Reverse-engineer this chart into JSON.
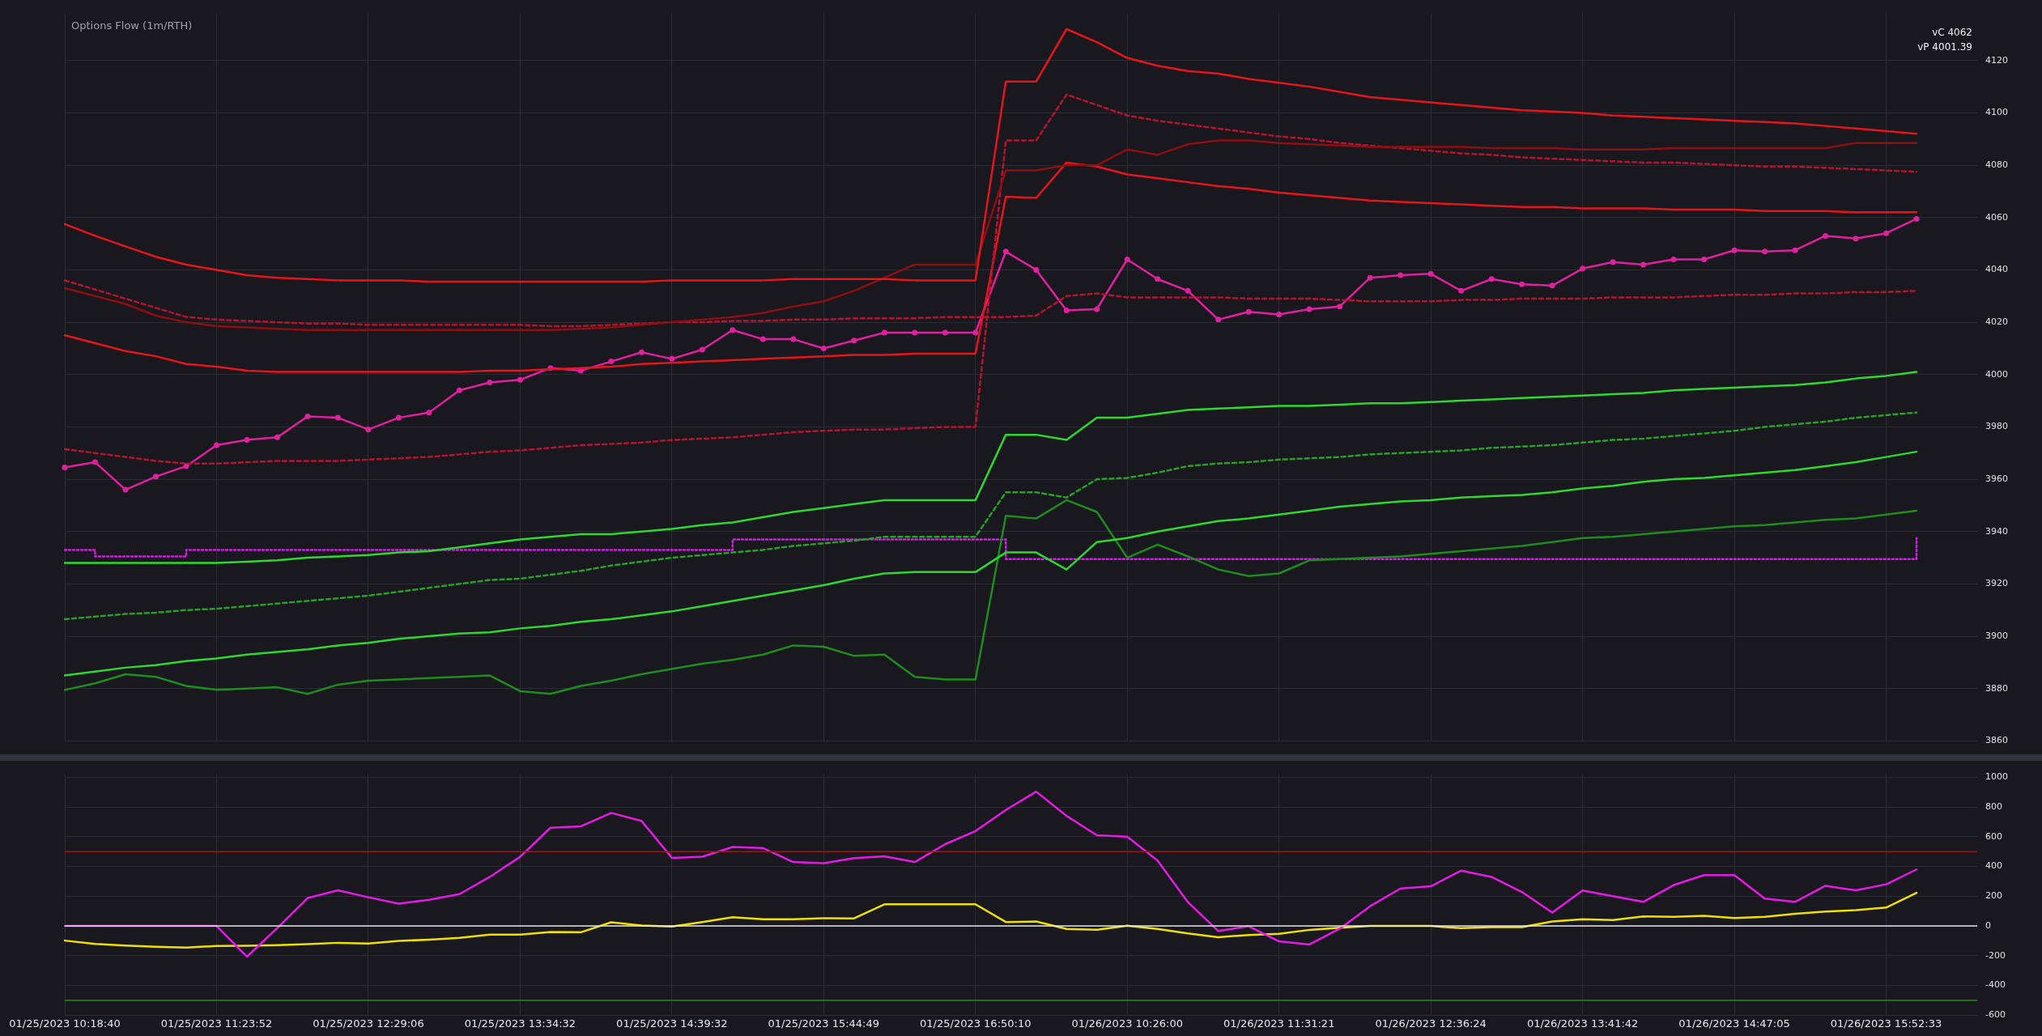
{
  "chart_data": [
    {
      "type": "line",
      "title": "Options Flow (1m/RTH)",
      "categories": [
        null,
        null,
        null,
        null,
        null,
        null,
        null,
        null,
        null,
        null,
        null,
        null,
        null,
        null,
        null,
        null,
        null,
        null,
        null,
        null,
        null,
        null,
        null,
        null,
        null,
        null,
        null,
        null,
        null,
        null,
        null,
        null,
        null,
        null,
        null,
        null,
        null,
        null,
        null,
        null,
        null,
        null,
        null,
        null,
        null,
        null,
        null,
        null,
        null,
        null,
        null,
        null,
        null,
        null,
        null,
        null,
        null,
        null,
        null,
        null,
        null,
        null,
        null,
        null
      ],
      "ylim": [
        3860,
        4138
      ],
      "yticks": [
        3860,
        3880,
        3900,
        3920,
        3940,
        3960,
        3980,
        4000,
        4020,
        4040,
        4060,
        4080,
        4100,
        4120
      ],
      "grid": true,
      "legend": false,
      "tick_labels": "y",
      "marker": "none",
      "line_style": "solid",
      "annotations": [
        "vC 4062",
        "vP 4001.39"
      ],
      "series": [
        {
          "color": "#e8141c",
          "values": [
            4057.5,
            4053,
            4049,
            4045,
            4042,
            4040,
            4038,
            4037,
            4036.5,
            4036,
            4036,
            4036,
            4035.5,
            4035.5,
            4035.5,
            4035.5,
            4035.5,
            4035.5,
            4035.5,
            4035.5,
            4036,
            4036,
            4036,
            4036,
            4036.5,
            4036.5,
            4036.5,
            4036.5,
            4036,
            4036,
            4036,
            4112,
            4112,
            4132,
            4127,
            4121,
            4118,
            4116,
            4115,
            4113,
            4111.5,
            4110,
            4108,
            4106,
            4105,
            4104,
            4103,
            4102,
            4101,
            4100.5,
            4100,
            4099,
            4098.5,
            4098,
            4097.5,
            4097,
            4096.5,
            4096,
            4095,
            4094,
            4093,
            4092,
            null,
            null
          ]
        },
        {
          "color": "#8e0f12",
          "values": [
            4033,
            4030,
            4027,
            4022.5,
            4020,
            4018.5,
            4018,
            4017.5,
            4017,
            4017,
            4017,
            4017,
            4017,
            4017,
            4017,
            4017,
            4017,
            4017.5,
            4018,
            4019,
            4020,
            4021,
            4022,
            4023.5,
            4026,
            4028,
            4032,
            4037,
            4042,
            4042,
            4042,
            4078,
            4078,
            4080,
            4080,
            4086,
            4084,
            4088,
            4089.5,
            4089.5,
            4088.5,
            4088,
            4087.5,
            4087,
            4087,
            4087,
            4087,
            4086.5,
            4086.5,
            4086.5,
            4086,
            4086,
            4086,
            4086.5,
            4086.5,
            4086.5,
            4086.5,
            4086.5,
            4086.5,
            4088.5,
            4088.5,
            4088.5,
            null,
            null
          ]
        },
        {
          "color": "#b4142e",
          "line_style": "dashed",
          "values": [
            4036,
            4032.5,
            4029,
            4025.5,
            4022,
            4021,
            4020.5,
            4020,
            4019.5,
            4019.5,
            4019,
            4019,
            4019,
            4019,
            4019,
            4019,
            4018.5,
            4018.5,
            4019,
            4019.5,
            4020,
            4020,
            4020.5,
            4020.5,
            4021,
            4021,
            4021.5,
            4021.5,
            4021.5,
            4022,
            4022,
            4022,
            4022.5,
            4030,
            4031,
            4029.5,
            4029.5,
            4029.5,
            4029.5,
            4029,
            4029,
            4029,
            4028.5,
            4028,
            4028,
            4028,
            4028.5,
            4028.5,
            4029,
            4029,
            4029,
            4029.5,
            4029.5,
            4029.5,
            4030,
            4030.5,
            4030.5,
            4031,
            4031,
            4031.5,
            4031.5,
            4032,
            null,
            null
          ]
        },
        {
          "color": "#b4142e",
          "line_style": "dashed",
          "values": [
            3971.5,
            3970,
            3968.5,
            3967,
            3966,
            3966,
            3966.5,
            3967,
            3967,
            3967,
            3967.5,
            3968,
            3968.5,
            3969.5,
            3970.5,
            3971,
            3972,
            3973,
            3973.5,
            3974,
            3975,
            3975.5,
            3976,
            3977,
            3978,
            3978.5,
            3979,
            3979,
            3979.5,
            3980,
            3980,
            4089.5,
            4089.5,
            4107,
            4103,
            4099,
            4097,
            4095.5,
            4094,
            4092.5,
            4091,
            4090,
            4088.5,
            4087.5,
            4086.5,
            4085.5,
            4084.5,
            4084,
            4083,
            4082.5,
            4082,
            4081.5,
            4081,
            4081,
            4080.5,
            4080,
            4079.5,
            4079.5,
            4079,
            4078.5,
            4078,
            4077.5,
            null,
            null
          ]
        },
        {
          "color": "#e8141c",
          "values": [
            4015,
            4012,
            4009,
            4007,
            4004,
            4003,
            4001.5,
            4001,
            4001,
            4001,
            4001,
            4001,
            4001,
            4001,
            4001.5,
            4001.5,
            4002,
            4002.5,
            4003,
            4004,
            4004.5,
            4005,
            4005.5,
            4006,
            4006.5,
            4007,
            4007.5,
            4007.5,
            4008,
            4008,
            4008,
            4068,
            4067.5,
            4081,
            4079.5,
            4076.5,
            4075,
            4073.5,
            4072,
            4071,
            4069.5,
            4068.5,
            4067.5,
            4066.5,
            4066,
            4065.5,
            4065,
            4064.5,
            4064,
            4064,
            4063.5,
            4063.5,
            4063.5,
            4063,
            4063,
            4063,
            4062.5,
            4062.5,
            4062.5,
            4062,
            4062,
            4062,
            null,
            null
          ]
        },
        {
          "color": "#2ed82e",
          "values": [
            3928,
            3928,
            3928,
            3928,
            3928,
            3928,
            3928.5,
            3929,
            3930,
            3930.5,
            3931,
            3932,
            3932.5,
            3934,
            3935.5,
            3937,
            3938,
            3939,
            3939,
            3940,
            3941,
            3942.5,
            3943.5,
            3945.5,
            3947.5,
            3949,
            3950.5,
            3952,
            3952,
            3952,
            3952,
            3977,
            3977,
            3975,
            3983.5,
            3983.5,
            3985,
            3986.5,
            3987,
            3987.5,
            3988,
            3988,
            3988.5,
            3989,
            3989,
            3989.5,
            3990,
            3990.5,
            3991,
            3991.5,
            3992,
            3992.5,
            3993,
            3994,
            3994.5,
            3995,
            3995.5,
            3996,
            3997,
            3998.5,
            3999.5,
            4001,
            null,
            null
          ]
        },
        {
          "color": "#28a028",
          "line_style": "dashed",
          "values": [
            3906.5,
            3907.5,
            3908.5,
            3909,
            3910,
            3910.5,
            3911.5,
            3912.5,
            3913.5,
            3914.5,
            3915.5,
            3917,
            3918.5,
            3920,
            3921.5,
            3922,
            3923.5,
            3925,
            3927,
            3928.5,
            3930,
            3931,
            3932,
            3933,
            3934.5,
            3935.5,
            3936.5,
            3938,
            3938,
            3938,
            3938,
            3955,
            3955,
            3953,
            3960,
            3960.5,
            3962.5,
            3965,
            3966,
            3966.5,
            3967.5,
            3968,
            3968.5,
            3969.5,
            3970,
            3970.5,
            3971,
            3972,
            3972.5,
            3973,
            3974,
            3975,
            3975.5,
            3976.5,
            3977.5,
            3978.5,
            3980,
            3981,
            3982,
            3983.5,
            3984.5,
            3985.5,
            null,
            null
          ]
        },
        {
          "color": "#2ed82e",
          "values": [
            3885,
            3886.5,
            3888,
            3889,
            3890.5,
            3891.5,
            3893,
            3894,
            3895,
            3896.5,
            3897.5,
            3899,
            3900,
            3901,
            3901.5,
            3903,
            3904,
            3905.5,
            3906.5,
            3908,
            3909.5,
            3911.5,
            3913.5,
            3915.5,
            3917.5,
            3919.5,
            3922,
            3924,
            3924.5,
            3924.5,
            3924.5,
            3932,
            3932,
            3925.5,
            3936,
            3937.5,
            3940,
            3942,
            3944,
            3945,
            3946.5,
            3948,
            3949.5,
            3950.5,
            3951.5,
            3952,
            3953,
            3953.5,
            3954,
            3955,
            3956.5,
            3957.5,
            3959,
            3960,
            3960.5,
            3961.5,
            3962.5,
            3963.5,
            3965,
            3966.5,
            3968.5,
            3970.5,
            null,
            null
          ]
        },
        {
          "color": "#1e8c1e",
          "values": [
            3879.5,
            3882,
            3885.5,
            3884.5,
            3881,
            3879.5,
            3880,
            3880.5,
            3878,
            3881.5,
            3883,
            3883.5,
            3884,
            3884.5,
            3885,
            3879,
            3878,
            3881,
            3883,
            3885.5,
            3887.5,
            3889.5,
            3891,
            3893,
            3896.5,
            3896,
            3892.5,
            3893,
            3884.5,
            3883.5,
            3883.5,
            3946,
            3945,
            3952,
            3947.5,
            3930,
            3935,
            3930.5,
            3925.5,
            3923,
            3924,
            3929,
            3929.5,
            3930,
            3930.5,
            3931.5,
            3932.5,
            3933.5,
            3934.5,
            3936,
            3937.5,
            3938,
            3939,
            3940,
            3941,
            3942,
            3942.5,
            3943.5,
            3944.5,
            3945,
            3946.5,
            3948,
            null,
            null
          ]
        },
        {
          "type": "step",
          "color": "#d21ee6",
          "line_style": "dotted",
          "values": [
            3933,
            3930.5,
            3930.5,
            3930.5,
            3933,
            3933,
            3933,
            3933,
            3933,
            3933,
            3933,
            3933,
            3933,
            3933,
            3933,
            3933,
            3933,
            3933,
            3933,
            3933,
            3933,
            3933,
            3937,
            3937,
            3937,
            3937,
            3937,
            3937,
            3937,
            3937,
            3937,
            3929.5,
            3929.5,
            3929.5,
            3929.5,
            3929.5,
            3929.5,
            3929.5,
            3929.5,
            3929.5,
            3929.5,
            3929.5,
            3929.5,
            3929.5,
            3929.5,
            3929.5,
            3929.5,
            3929.5,
            3929.5,
            3929.5,
            3929.5,
            3929.5,
            3929.5,
            3929.5,
            3929.5,
            3929.5,
            3929.5,
            3929.5,
            3929.5,
            3929.5,
            3929.5,
            3937.5,
            null,
            null
          ]
        },
        {
          "color": "#e0209f",
          "marker": "circle",
          "values": [
            3964.5,
            3966.5,
            3956,
            3961,
            3965,
            3973,
            3975,
            3976,
            3984,
            3983.5,
            3979,
            3983.5,
            3985.5,
            3994,
            3997,
            3998,
            4002.5,
            4001.5,
            4005,
            4008.5,
            4006,
            4009.5,
            4017,
            4013.5,
            4013.5,
            4010,
            4013,
            4016,
            4016,
            4016,
            4016,
            4047,
            4040,
            4024.5,
            4025,
            4044,
            4036.5,
            4032,
            4021,
            4024,
            4023,
            4025,
            4026,
            4037,
            4038,
            4038.5,
            4032,
            4036.5,
            4034.5,
            4034,
            4040.5,
            4043,
            4042,
            4044,
            4044,
            4047.5,
            4047,
            4047.5,
            4053,
            4052,
            4054,
            4059.5,
            null,
            null
          ]
        }
      ]
    },
    {
      "type": "line",
      "categories": [
        "01/25/2023 10:18:40",
        null,
        null,
        null,
        null,
        "01/25/2023 11:23:52",
        null,
        null,
        null,
        null,
        "01/25/2023 12:29:06",
        null,
        null,
        null,
        null,
        "01/25/2023 13:34:32",
        null,
        null,
        null,
        null,
        "01/25/2023 14:39:32",
        null,
        null,
        null,
        null,
        "01/25/2023 15:44:49",
        null,
        null,
        null,
        null,
        "01/25/2023 16:50:10",
        null,
        null,
        null,
        null,
        "01/26/2023 10:26:00",
        null,
        null,
        null,
        null,
        "01/26/2023 11:31:21",
        null,
        null,
        null,
        null,
        "01/26/2023 12:36:24",
        null,
        null,
        null,
        null,
        "01/26/2023 13:41:42",
        null,
        null,
        null,
        null,
        "01/26/2023 14:47:05",
        null,
        null,
        null,
        null,
        "01/26/2023 15:52:33",
        null,
        null,
        null
      ],
      "ylim": [
        -600,
        1020
      ],
      "yticks": [
        -600,
        -400,
        -200,
        0,
        200,
        400,
        600,
        800,
        1000
      ],
      "grid": true,
      "legend": false,
      "marker": "none",
      "line_style": "solid",
      "ref_lines": [
        {
          "axis": "y",
          "value": 500,
          "color": "#8e1a1a"
        },
        {
          "axis": "y",
          "value": 0,
          "color": "#e6e6e6"
        },
        {
          "axis": "y",
          "value": -500,
          "color": "#1f8f1f"
        }
      ],
      "series": [
        {
          "color": "#e619e6",
          "values": [
            0,
            0,
            0,
            0,
            0,
            0,
            -206,
            -14,
            188,
            240,
            193,
            150,
            176,
            214,
            330,
            465,
            660,
            670,
            760,
            706,
            458,
            466,
            531,
            524,
            430,
            422,
            456,
            468,
            430,
            550,
            638,
            780,
            903,
            740,
            610,
            600,
            440,
            160,
            -34,
            -1,
            -103,
            -124,
            -18,
            133,
            252,
            267,
            372,
            330,
            229,
            90,
            239,
            200,
            162,
            275,
            342,
            342,
            184,
            162,
            270,
            240,
            280,
            380,
            null,
            null
          ]
        },
        {
          "color": "#f0e000",
          "values": [
            -98,
            -120,
            -132,
            -140,
            -145,
            -134,
            -133,
            -129,
            -122,
            -113,
            -118,
            -100,
            -92,
            -80,
            -58,
            -58,
            -40,
            -42,
            25,
            3,
            -3,
            27,
            59,
            46,
            45,
            52,
            51,
            146,
            146,
            146,
            146,
            27,
            30,
            -20,
            -25,
            2,
            -20,
            -50,
            -75,
            -60,
            -53,
            -26,
            -12,
            0,
            0,
            0,
            -15,
            -8,
            -8,
            30,
            45,
            40,
            64,
            62,
            68,
            54,
            62,
            82,
            97,
            107,
            124,
            223,
            null,
            null
          ]
        }
      ]
    }
  ]
}
